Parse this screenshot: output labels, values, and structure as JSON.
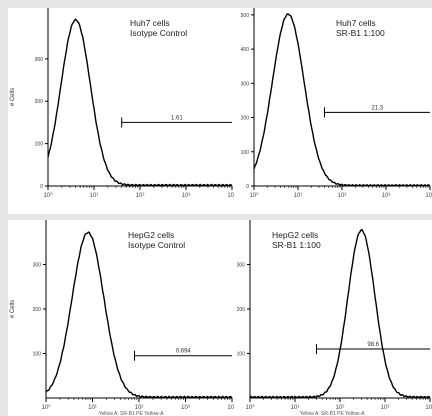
{
  "chart_data": [
    {
      "type": "line",
      "title_lines": [
        "Huh7 cells",
        "Isotype Control"
      ],
      "ylabel": "# Cells",
      "xlabel": "",
      "x_ticks": [
        "10⁰",
        "10¹",
        "10²",
        "10³",
        "10⁴"
      ],
      "x_scale": "log",
      "xlim": [
        1,
        10000
      ],
      "ylim": [
        0,
        420
      ],
      "y_ticks": [
        0,
        100,
        200,
        300
      ],
      "y_tick_labels": [
        "0",
        "100",
        "200",
        "300"
      ],
      "peak_x": 4.0,
      "peak_height": 390,
      "peak_width_decades": 0.32,
      "gate": {
        "x_start": 40,
        "x_end": 10000,
        "y": 150,
        "label": "1.61"
      }
    },
    {
      "type": "line",
      "title_lines": [
        "Huh7 cells",
        "SR-B1 1:100"
      ],
      "ylabel": "",
      "xlabel": "",
      "x_ticks": [
        "10⁰",
        "10¹",
        "10²",
        "10³",
        "10⁴"
      ],
      "x_scale": "log",
      "xlim": [
        1,
        10000
      ],
      "ylim": [
        0,
        520
      ],
      "y_ticks": [
        0,
        100,
        200,
        300,
        400,
        500
      ],
      "y_tick_labels": [
        "0",
        "100",
        "200",
        "300",
        "400",
        "500"
      ],
      "peak_x": 6.0,
      "peak_height": 500,
      "peak_width_decades": 0.36,
      "gate": {
        "x_start": 40,
        "x_end": 10000,
        "y": 215,
        "label": "21.3"
      }
    },
    {
      "type": "line",
      "title_lines": [
        "HepG2 cells",
        "Isotype Control"
      ],
      "ylabel": "# Cells",
      "xlabel": "Yellow A: SR-B1 PE Yellow-A",
      "x_ticks": [
        "10⁰",
        "10¹",
        "10²",
        "10³",
        "10⁴"
      ],
      "x_scale": "log",
      "xlim": [
        1,
        10000
      ],
      "ylim": [
        0,
        400
      ],
      "y_ticks": [
        100,
        200,
        300
      ],
      "y_tick_labels": [
        "100",
        "200",
        "300"
      ],
      "peak_x": 8.0,
      "peak_height": 370,
      "peak_width_decades": 0.34,
      "gate": {
        "x_start": 80,
        "x_end": 10000,
        "y": 95,
        "label": "0.694"
      }
    },
    {
      "type": "line",
      "title_lines": [
        "HepG2 cells",
        "SR-B1 1:100"
      ],
      "ylabel": "",
      "xlabel": "Yellow A: SR-B1 PE Yellow-A",
      "x_ticks": [
        "10⁰",
        "10¹",
        "10²",
        "10³",
        "10⁴"
      ],
      "x_scale": "log",
      "xlim": [
        1,
        10000
      ],
      "ylim": [
        0,
        400
      ],
      "y_ticks": [
        100,
        200,
        300
      ],
      "y_tick_labels": [
        "100",
        "200",
        "300"
      ],
      "peak_x": 300,
      "peak_height": 375,
      "peak_width_decades": 0.3,
      "gate": {
        "x_start": 30,
        "x_end": 10000,
        "y": 110,
        "label": "98.6"
      }
    }
  ]
}
